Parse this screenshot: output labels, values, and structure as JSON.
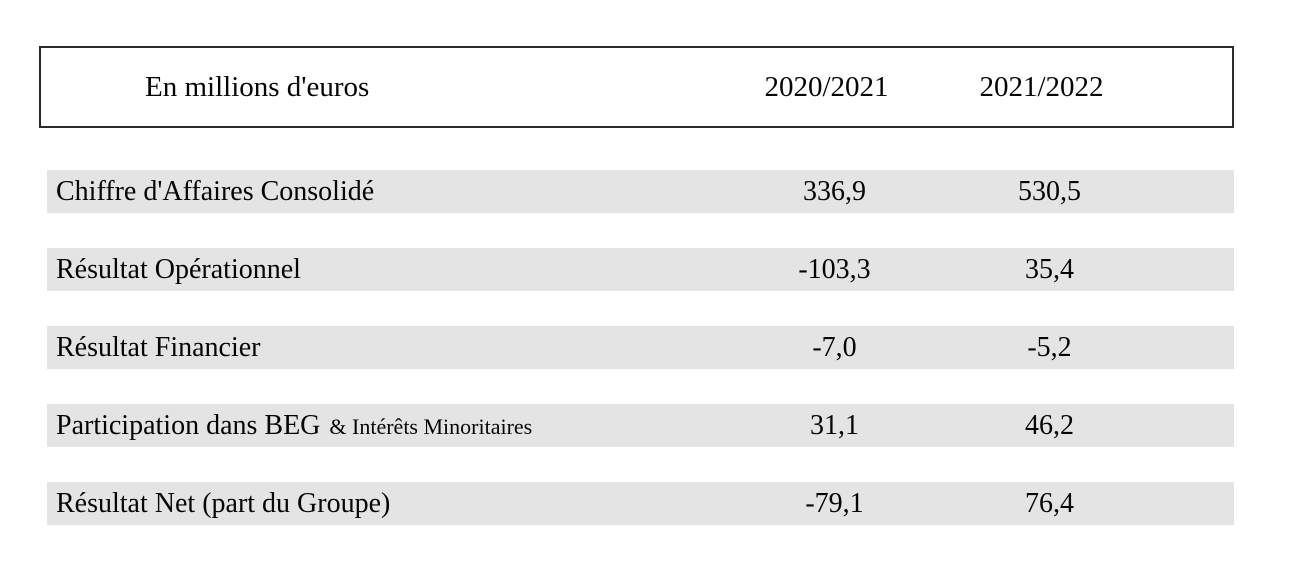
{
  "table": {
    "unit_label": "En millions d'euros",
    "columns": [
      "2020/2021",
      "2021/2022"
    ],
    "rows": [
      {
        "label": "Chiffre d'Affaires Consolidé",
        "suffix": "",
        "values": [
          "336,9",
          "530,5"
        ]
      },
      {
        "label": "Résultat Opérationnel",
        "suffix": "",
        "values": [
          "-103,3",
          "35,4"
        ]
      },
      {
        "label": "Résultat Financier",
        "suffix": "",
        "values": [
          "-7,0",
          "-5,2"
        ]
      },
      {
        "label": "Participation dans BEG",
        "suffix": "& Intérêts Minoritaires",
        "values": [
          "31,1",
          "46,2"
        ]
      },
      {
        "label": "Résultat Net (part du Groupe)",
        "suffix": "",
        "values": [
          "-79,1",
          "76,4"
        ]
      }
    ],
    "colors": {
      "row_band": "#e4e4e4",
      "border": "#2b2b2b",
      "text": "#050505",
      "background": "#ffffff"
    }
  }
}
